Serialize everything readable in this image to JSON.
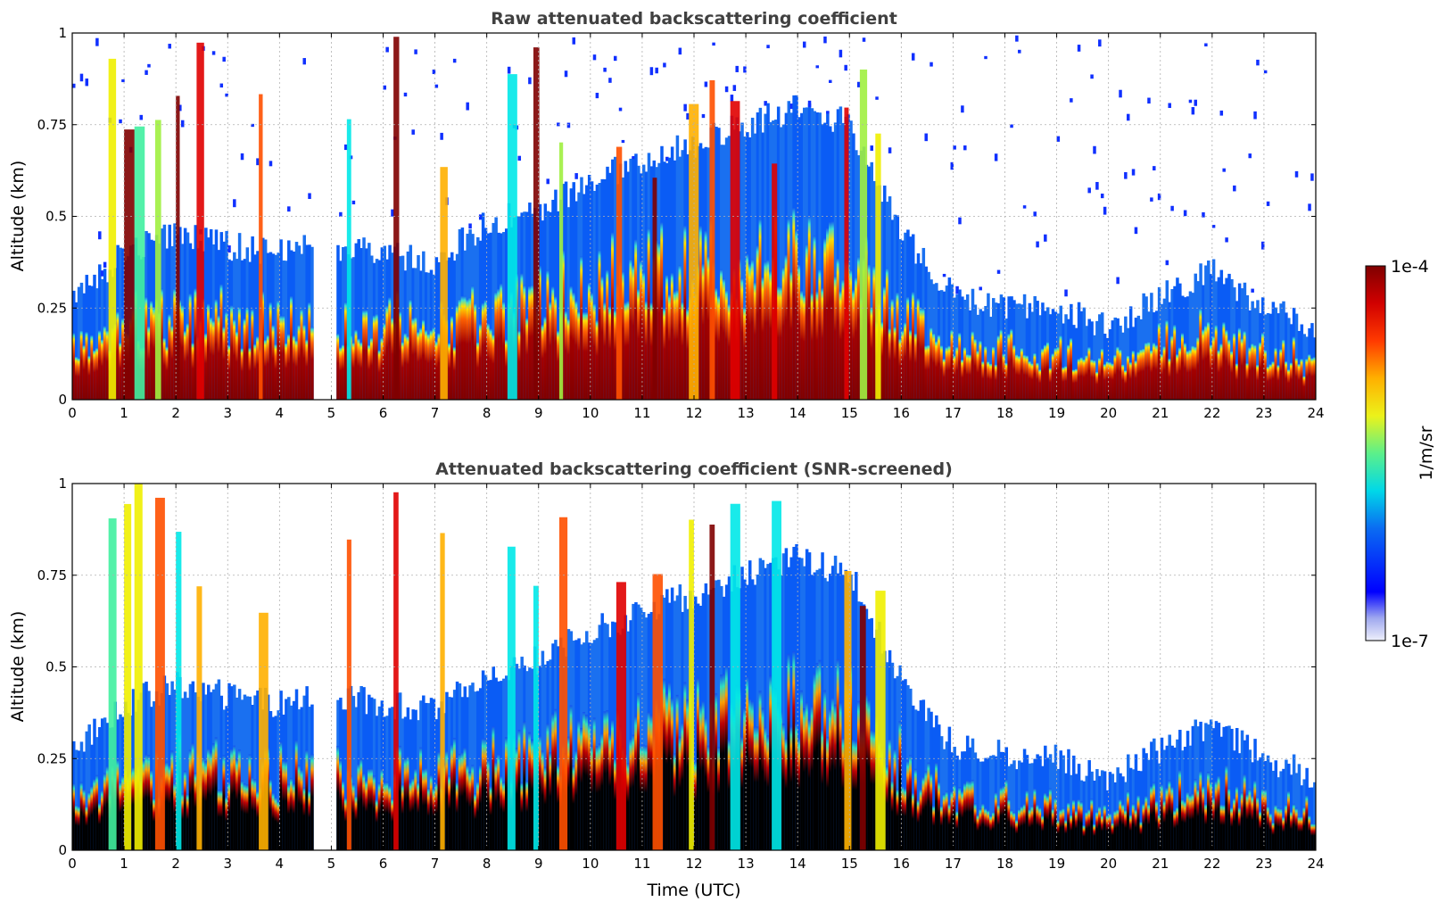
{
  "figure": {
    "x_axis_label": "Time (UTC)",
    "colorbar": {
      "label": "1/m/sr",
      "max_label": "1e-4",
      "min_label": "1e-7",
      "colormap": "jet (white → blue → cyan → green → yellow → orange → red → dark red)",
      "scale": "log",
      "range": [
        1e-07,
        0.0001
      ]
    }
  },
  "chart_data": [
    {
      "type": "heatmap",
      "title": "Raw attenuated backscattering coefficient",
      "xlabel": "",
      "ylabel": "Altitude (km)",
      "xlim": [
        0,
        24
      ],
      "ylim": [
        0,
        1
      ],
      "xticks": [
        "0",
        "1",
        "2",
        "3",
        "4",
        "5",
        "6",
        "7",
        "8",
        "9",
        "10",
        "11",
        "12",
        "13",
        "14",
        "15",
        "16",
        "17",
        "18",
        "19",
        "20",
        "21",
        "22",
        "23",
        "24"
      ],
      "yticks": [
        "0",
        "0.25",
        "0.5",
        "0.75",
        "1"
      ],
      "grid": true,
      "data_gaps_utc": [
        [
          4.6,
          5.05
        ]
      ],
      "boundary_layer_top_km": [
        {
          "x": 0.0,
          "y": 0.28
        },
        {
          "x": 1.0,
          "y": 0.4
        },
        {
          "x": 2.0,
          "y": 0.45
        },
        {
          "x": 3.0,
          "y": 0.42
        },
        {
          "x": 4.0,
          "y": 0.4
        },
        {
          "x": 5.0,
          "y": 0.42
        },
        {
          "x": 6.0,
          "y": 0.4
        },
        {
          "x": 7.0,
          "y": 0.38
        },
        {
          "x": 8.0,
          "y": 0.48
        },
        {
          "x": 9.0,
          "y": 0.52
        },
        {
          "x": 10.0,
          "y": 0.6
        },
        {
          "x": 11.0,
          "y": 0.65
        },
        {
          "x": 12.0,
          "y": 0.7
        },
        {
          "x": 13.0,
          "y": 0.75
        },
        {
          "x": 14.0,
          "y": 0.8
        },
        {
          "x": 15.0,
          "y": 0.75
        },
        {
          "x": 16.0,
          "y": 0.45
        },
        {
          "x": 17.0,
          "y": 0.28
        },
        {
          "x": 18.0,
          "y": 0.26
        },
        {
          "x": 19.0,
          "y": 0.25
        },
        {
          "x": 20.0,
          "y": 0.2
        },
        {
          "x": 21.0,
          "y": 0.28
        },
        {
          "x": 22.0,
          "y": 0.35
        },
        {
          "x": 23.0,
          "y": 0.25
        },
        {
          "x": 24.0,
          "y": 0.2
        }
      ]
    },
    {
      "type": "heatmap",
      "title": "Attenuated backscattering coefficient (SNR-screened)",
      "xlabel": "Time (UTC)",
      "ylabel": "Altitude (km)",
      "xlim": [
        0,
        24
      ],
      "ylim": [
        0,
        1
      ],
      "xticks": [
        "0",
        "1",
        "2",
        "3",
        "4",
        "5",
        "6",
        "7",
        "8",
        "9",
        "10",
        "11",
        "12",
        "13",
        "14",
        "15",
        "16",
        "17",
        "18",
        "19",
        "20",
        "21",
        "22",
        "23",
        "24"
      ],
      "yticks": [
        "0",
        "0.25",
        "0.5",
        "0.75",
        "1"
      ],
      "grid": true,
      "data_gaps_utc": [
        [
          4.6,
          5.05
        ]
      ],
      "saturated_color": "#000000"
    }
  ]
}
